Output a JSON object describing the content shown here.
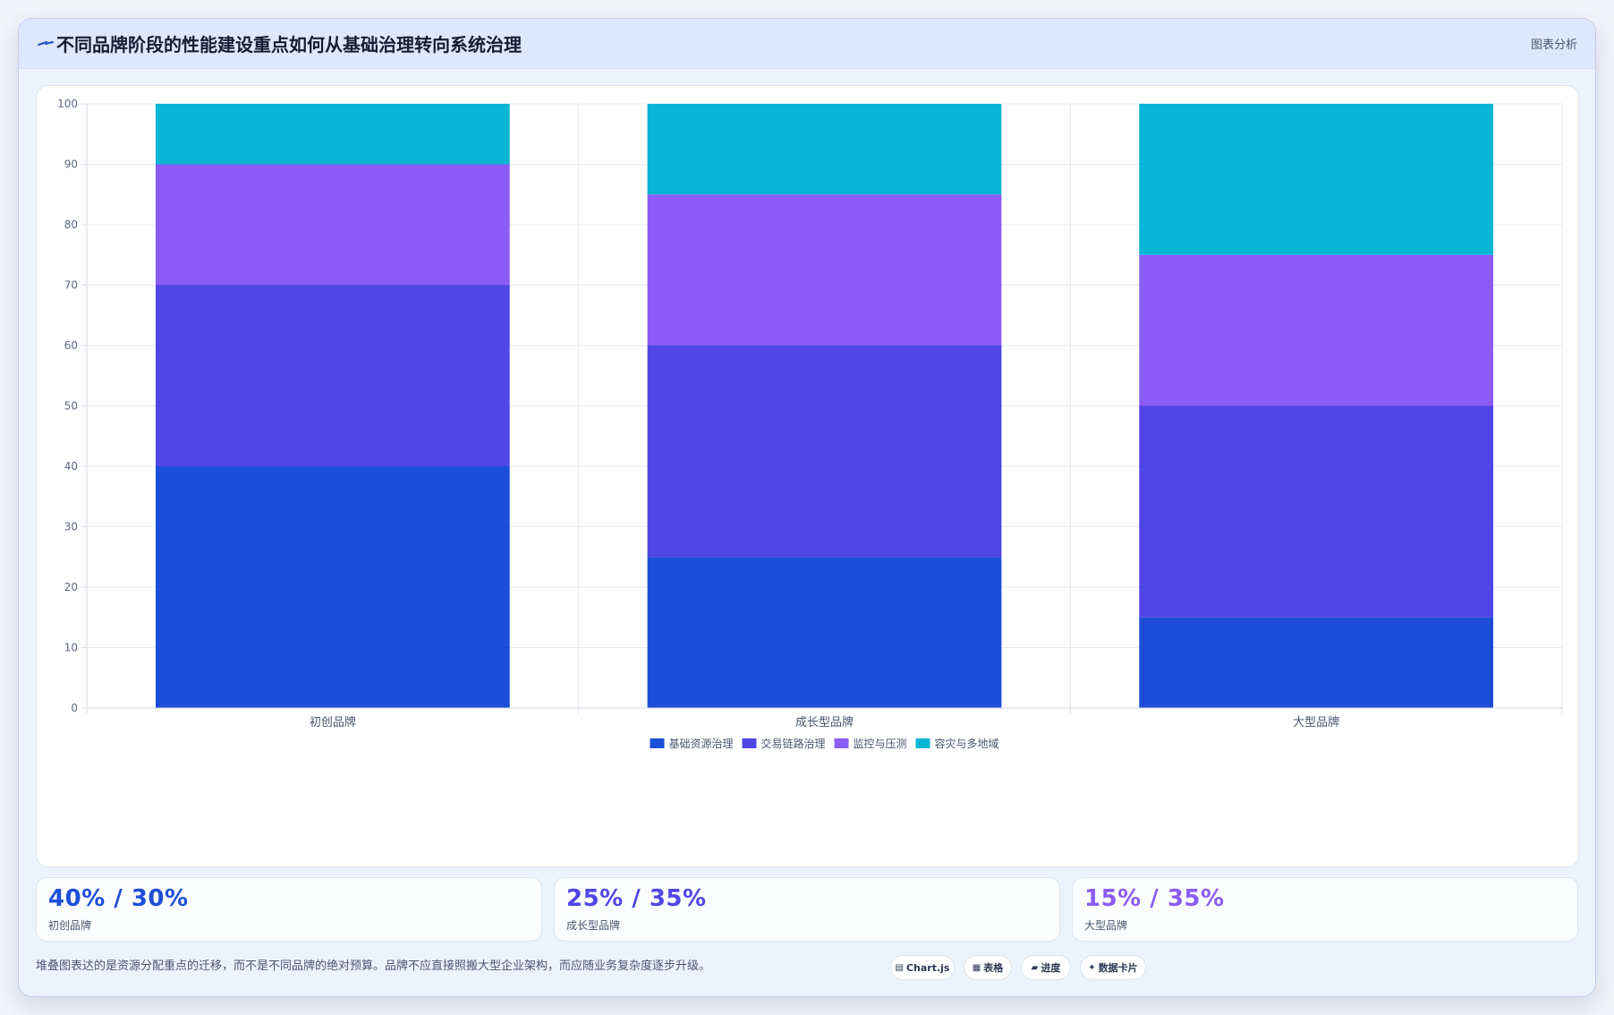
{
  "header": {
    "title": "不同品牌阶段的性能建设重点如何从基础治理转向系统治理",
    "tag": "图表分析"
  },
  "chart_data": {
    "type": "bar",
    "stacked": true,
    "categories": [
      "初创品牌",
      "成长型品牌",
      "大型品牌"
    ],
    "series": [
      {
        "name": "基础资源治理",
        "values": [
          40,
          25,
          15
        ],
        "color": "#1d4ed8"
      },
      {
        "name": "交易链路治理",
        "values": [
          30,
          35,
          35
        ],
        "color": "#4f46e5"
      },
      {
        "name": "监控与压测",
        "values": [
          20,
          25,
          25
        ],
        "color": "#8b5cf6"
      },
      {
        "name": "容灾与多地域",
        "values": [
          10,
          15,
          25
        ],
        "color": "#06b6d4"
      }
    ],
    "ylim": [
      0,
      100
    ],
    "yticks": [
      0,
      10,
      20,
      30,
      40,
      50,
      60,
      70,
      80,
      90,
      100
    ],
    "grid": true,
    "legend_position": "bottom"
  },
  "stats": [
    {
      "value": "40% / 30%",
      "label": "初创品牌",
      "color": "#1d4ed8"
    },
    {
      "value": "25% / 35%",
      "label": "成长型品牌",
      "color": "#4f46e5"
    },
    {
      "value": "15% / 35%",
      "label": "大型品牌",
      "color": "#8b5cf6"
    }
  ],
  "footnote": "堆叠图表达的是资源分配重点的迁移，而不是不同品牌的绝对预算。品牌不应直接照搬大型企业架构，而应随业务复杂度逐步升级。",
  "pills": [
    {
      "icon": "chart-icon",
      "glyph": "▤",
      "label": "Chart.js"
    },
    {
      "icon": "table-icon",
      "glyph": "▦",
      "label": "表格"
    },
    {
      "icon": "progress-icon",
      "glyph": "▰",
      "label": "进度"
    },
    {
      "icon": "card-icon",
      "glyph": "✦",
      "label": "数据卡片"
    }
  ]
}
